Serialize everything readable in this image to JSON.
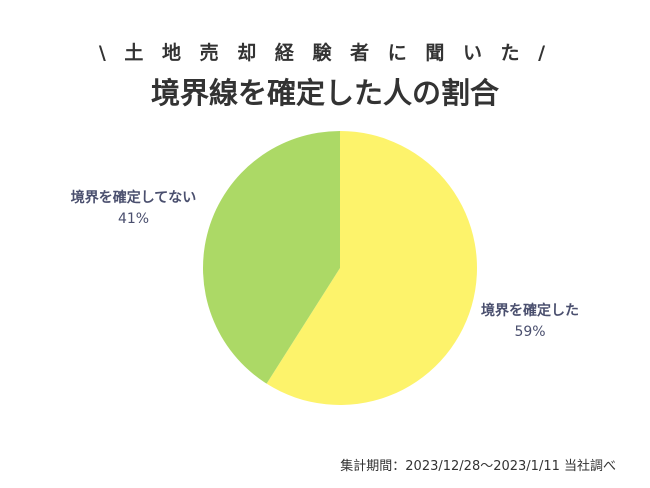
{
  "subtitle": "\\ 土 地 売 却 経 験 者 に 聞 い た /",
  "title": "境界線を確定した人の割合",
  "chart_data": {
    "type": "pie",
    "title": "境界線を確定した人の割合",
    "subtitle": "\\ 土 地 売 却 経 験 者 に 聞 い た /",
    "start_angle_deg": 0,
    "direction": "clockwise",
    "slices": [
      {
        "label": "境界を確定した",
        "value": 59,
        "value_label": "59%",
        "color": "#fdf36b"
      },
      {
        "label": "境界を確定してない",
        "value": 41,
        "value_label": "41%",
        "color": "#acd966"
      }
    ]
  },
  "footnote": "集計期間：2023/12/28〜2023/1/11 当社調べ"
}
